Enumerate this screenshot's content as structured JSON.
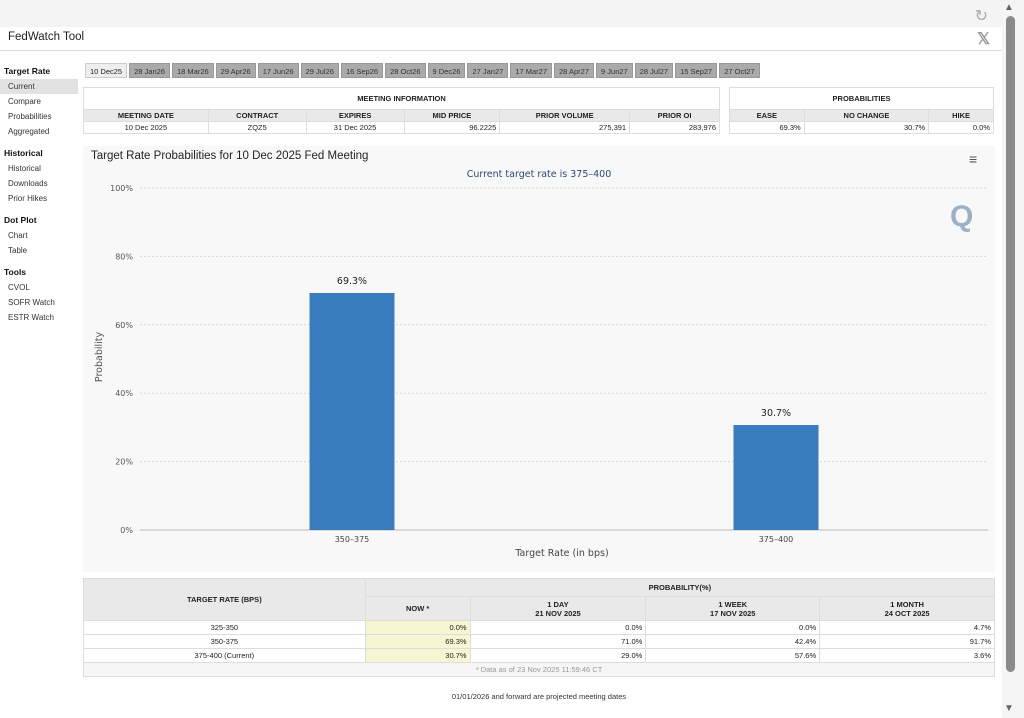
{
  "app": {
    "title": "FedWatch Tool"
  },
  "icons": {
    "refresh": "refresh-icon",
    "x_logo": "x-logo-icon",
    "menu": "hamburger-menu-icon",
    "q_logo": "q-logo-icon"
  },
  "sidebar": {
    "groups": [
      {
        "label": "Target Rate",
        "items": [
          "Current",
          "Compare",
          "Probabilities",
          "Aggregated"
        ]
      },
      {
        "label": "Historical",
        "items": [
          "Historical",
          "Downloads",
          "Prior Hikes"
        ]
      },
      {
        "label": "Dot Plot",
        "items": [
          "Chart",
          "Table"
        ]
      },
      {
        "label": "Tools",
        "items": [
          "CVOL",
          "SOFR Watch",
          "ESTR Watch"
        ]
      }
    ]
  },
  "tabs": [
    "10 Dec25",
    "28 Jan26",
    "18 Mar26",
    "29 Apr26",
    "17 Jun26",
    "29 Jul26",
    "16 Sep26",
    "28 Oct26",
    "9 Dec26",
    "27 Jan27",
    "17 Mar27",
    "28 Apr27",
    "9 Jun27",
    "28 Jul27",
    "15 Sep27",
    "27 Oct27"
  ],
  "meeting_info": {
    "section": "MEETING INFORMATION",
    "headers": [
      "MEETING DATE",
      "CONTRACT",
      "EXPIRES",
      "MID PRICE",
      "PRIOR VOLUME",
      "PRIOR OI"
    ],
    "row": [
      "10 Dec 2025",
      "ZQZ5",
      "31 Dec 2025",
      "96.2225",
      "275,391",
      "283,976"
    ]
  },
  "probabilities": {
    "section": "PROBABILITIES",
    "headers": [
      "EASE",
      "NO CHANGE",
      "HIKE"
    ],
    "row": [
      "69.3%",
      "30.7%",
      "0.0%"
    ]
  },
  "chart": {
    "title": "Target Rate Probabilities for 10 Dec 2025 Fed Meeting",
    "subtitle": "Current target rate is 375–400",
    "menu_icon": "≡",
    "q_logo": "Q"
  },
  "chart_data": {
    "type": "bar",
    "categories": [
      "350–375",
      "375–400"
    ],
    "values": [
      69.3,
      30.7
    ],
    "data_labels": [
      "69.3%",
      "30.7%"
    ],
    "title": "Target Rate Probabilities for 10 Dec 2025 Fed Meeting",
    "subtitle": "Current target rate is 375–400",
    "xlabel": "Target Rate (in bps)",
    "ylabel": "Probability",
    "ylim": [
      0,
      100
    ],
    "yticks": [
      "0%",
      "20%",
      "40%",
      "60%",
      "80%",
      "100%"
    ],
    "ytick_values": [
      0,
      20,
      40,
      60,
      80,
      100
    ],
    "color": "#3a7dbe",
    "grid": true
  },
  "bottom_table": {
    "col1_header": "TARGET RATE (BPS)",
    "group_header": "PROBABILITY(%)",
    "sub_headers": [
      {
        "line1": "NOW *",
        "line2": ""
      },
      {
        "line1": "1 DAY",
        "line2": "21 NOV 2025"
      },
      {
        "line1": "1 WEEK",
        "line2": "17 NOV 2025"
      },
      {
        "line1": "1 MONTH",
        "line2": "24 OCT 2025"
      }
    ],
    "rows": [
      {
        "rate": "325-350",
        "values": [
          "0.0%",
          "0.0%",
          "0.0%",
          "4.7%"
        ]
      },
      {
        "rate": "350-375",
        "values": [
          "69.3%",
          "71.0%",
          "42.4%",
          "91.7%"
        ]
      },
      {
        "rate": "375-400 (Current)",
        "values": [
          "30.7%",
          "29.0%",
          "57.6%",
          "3.6%"
        ]
      }
    ],
    "footnote": "* Data as of 23 Nov 2025 11:59:46 CT"
  },
  "bottom_note": "01/01/2026 and forward are projected meeting dates"
}
